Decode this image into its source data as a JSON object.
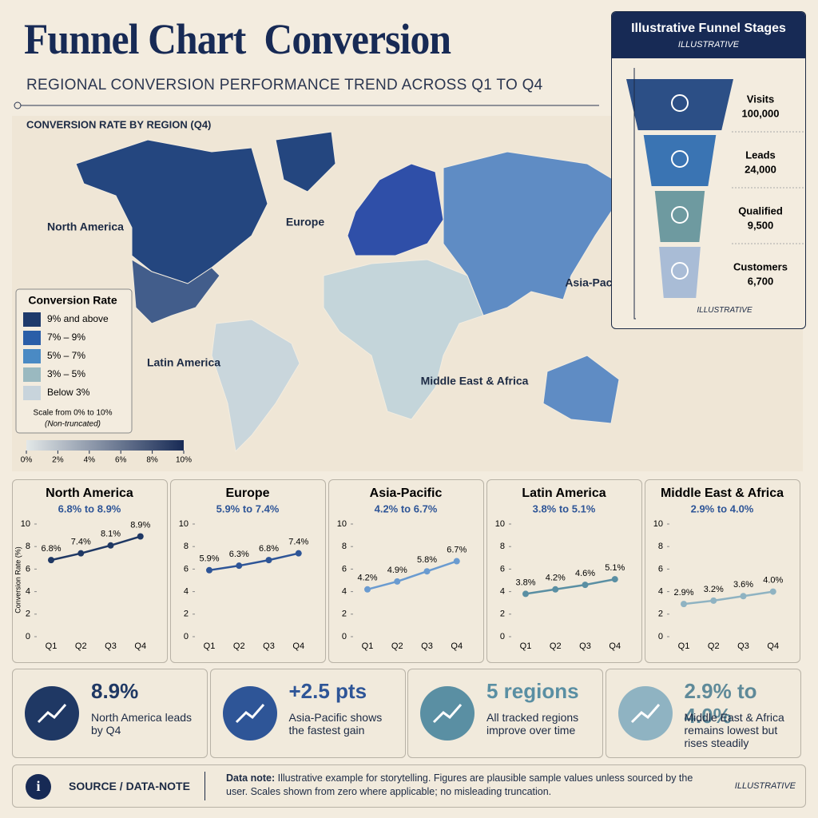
{
  "header": {
    "title": "Funnel Chart  Conversion",
    "subtitle": "REGIONAL CONVERSION PERFORMANCE TREND ACROSS Q1 TO Q4"
  },
  "map": {
    "title": "CONVERSION RATE BY REGION (Q4)",
    "regions": [
      {
        "label": "North America",
        "color": "#24467f"
      },
      {
        "label": "Europe",
        "color": "#2f4fa8"
      },
      {
        "label": "Asia-Pacific",
        "color": "#5f8cc4"
      },
      {
        "label": "Latin America",
        "color": "#c9d6dc"
      },
      {
        "label": "Middle East & Africa",
        "color": "#c4d5da"
      }
    ],
    "legend": {
      "title": "Conversion Rate",
      "items": [
        {
          "label": "9% and above",
          "color": "#1e3a6b"
        },
        {
          "label": "7% – 9%",
          "color": "#2a5ea8"
        },
        {
          "label": "5% – 7%",
          "color": "#4a8ac4"
        },
        {
          "label": "3% – 5%",
          "color": "#9ab9c0"
        },
        {
          "label": "Below 3%",
          "color": "#c8d4dc"
        }
      ],
      "note": "Scale from 0% to 10%",
      "note2": "(Non-truncated)",
      "scale_lim": [
        0,
        10
      ],
      "scale_ticks": [
        {
          "value": 0,
          "label": "0%"
        },
        {
          "value": 2,
          "label": "2%"
        },
        {
          "value": 4,
          "label": "4%"
        },
        {
          "value": 6,
          "label": "6%"
        },
        {
          "value": 8,
          "label": "8%"
        },
        {
          "value": 10,
          "label": "10%"
        }
      ]
    }
  },
  "chart_data": [
    {
      "type": "funnel",
      "title": "Illustrative Funnel Stages",
      "subtitle": "ILLUSTRATIVE",
      "note": "ILLUSTRATIVE",
      "categories": [
        "Visits",
        "Leads",
        "Qualified",
        "Customers"
      ],
      "values": [
        100000,
        24000,
        9500,
        6700
      ],
      "value_labels": [
        "100,000",
        "24,000",
        "9,500",
        "6,700"
      ],
      "colors": [
        "#2c4f86",
        "#3a74b3",
        "#6e9aa0",
        "#a9bcd6"
      ]
    },
    {
      "type": "line",
      "title": "North America",
      "subtitle": "6.8% to 8.9%",
      "ylabel": "Conversion Rate (%)",
      "color": "#1f3864",
      "categories": [
        "Q1",
        "Q2",
        "Q3",
        "Q4"
      ],
      "values": [
        6.8,
        7.4,
        8.1,
        8.9
      ],
      "value_labels": [
        "6.8%",
        "7.4%",
        "8.1%",
        "8.9%"
      ],
      "ylim": [
        0,
        10
      ],
      "yticks": [
        0,
        2,
        4,
        6,
        8,
        10
      ]
    },
    {
      "type": "line",
      "title": "Europe",
      "subtitle": "5.9% to 7.4%",
      "color": "#2e5597",
      "categories": [
        "Q1",
        "Q2",
        "Q3",
        "Q4"
      ],
      "values": [
        5.9,
        6.3,
        6.8,
        7.4
      ],
      "value_labels": [
        "5.9%",
        "6.3%",
        "6.8%",
        "7.4%"
      ],
      "ylim": [
        0,
        10
      ],
      "yticks": [
        0,
        2,
        4,
        6,
        8,
        10
      ]
    },
    {
      "type": "line",
      "title": "Asia-Pacific",
      "subtitle": "4.2% to 6.7%",
      "color": "#6a9bd0",
      "categories": [
        "Q1",
        "Q2",
        "Q3",
        "Q4"
      ],
      "values": [
        4.2,
        4.9,
        5.8,
        6.7
      ],
      "value_labels": [
        "4.2%",
        "4.9%",
        "5.8%",
        "6.7%"
      ],
      "ylim": [
        0,
        10
      ],
      "yticks": [
        0,
        2,
        4,
        6,
        8,
        10
      ]
    },
    {
      "type": "line",
      "title": "Latin America",
      "subtitle": "3.8% to 5.1%",
      "color": "#5a8fa3",
      "categories": [
        "Q1",
        "Q2",
        "Q3",
        "Q4"
      ],
      "values": [
        3.8,
        4.2,
        4.6,
        5.1
      ],
      "value_labels": [
        "3.8%",
        "4.2%",
        "4.6%",
        "5.1%"
      ],
      "ylim": [
        0,
        10
      ],
      "yticks": [
        0,
        2,
        4,
        6,
        8,
        10
      ]
    },
    {
      "type": "line",
      "title": "Middle East & Africa",
      "subtitle": "2.9% to 4.0%",
      "color": "#8fb3c2",
      "categories": [
        "Q1",
        "Q2",
        "Q3",
        "Q4"
      ],
      "values": [
        2.9,
        3.2,
        3.6,
        4.0
      ],
      "value_labels": [
        "2.9%",
        "3.2%",
        "3.6%",
        "4.0%"
      ],
      "ylim": [
        0,
        10
      ],
      "yticks": [
        0,
        2,
        4,
        6,
        8,
        10
      ]
    }
  ],
  "kpis": [
    {
      "value": "8.9%",
      "text": "North America leads by Q4",
      "color": "#1f3864"
    },
    {
      "value": "+2.5 pts",
      "text": "Asia-Pacific shows the fastest gain",
      "color": "#2e5597"
    },
    {
      "value": "5 regions",
      "text": "All tracked regions improve over time",
      "color": "#5a8fa3"
    },
    {
      "value": "2.9% to 4.0%",
      "text": "Middle East & Africa remains lowest but rises steadily",
      "color": "#8fb3c2"
    }
  ],
  "footer": {
    "label": "SOURCE / DATA-NOTE",
    "note_bold": "Data note:",
    "note": "Illustrative example for storytelling. Figures are plausible sample values unless sourced by the user. Scales shown from zero where applicable; no misleading truncation.",
    "tag": "ILLUSTRATIVE"
  }
}
